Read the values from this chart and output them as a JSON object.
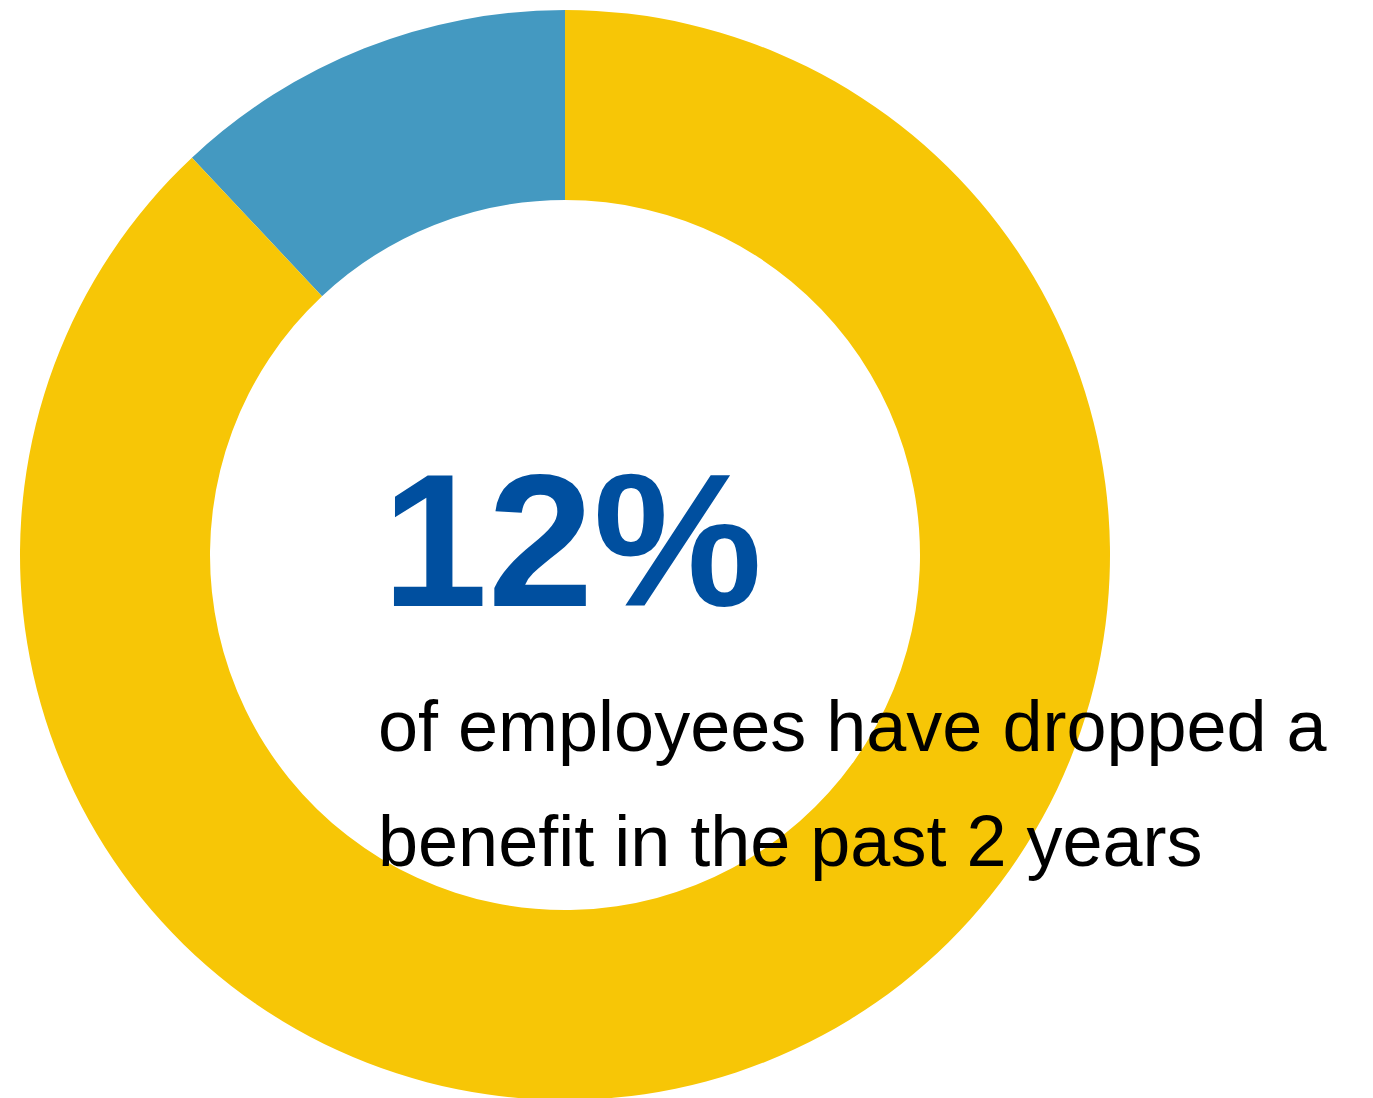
{
  "chart_data": {
    "type": "donut",
    "title": "12%",
    "categories": [
      null,
      null
    ],
    "values": [
      12,
      88
    ],
    "colors": [
      "#4499c1",
      "#f7c606"
    ],
    "annotations": [
      "of employees have dropped a benefit in the past 2 years"
    ]
  }
}
